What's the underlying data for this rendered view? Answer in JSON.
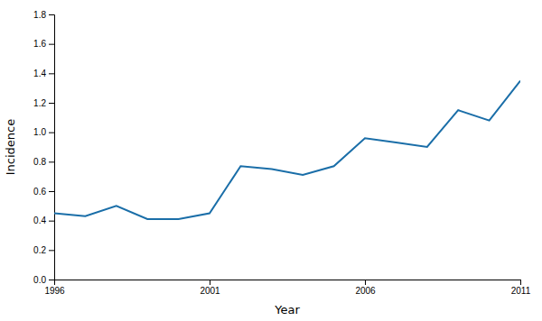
{
  "chart_data": {
    "type": "line",
    "x": [
      1996,
      1997,
      1998,
      1999,
      2000,
      2001,
      2002,
      2003,
      2004,
      2005,
      2006,
      2007,
      2008,
      2009,
      2010,
      2011
    ],
    "values": [
      0.45,
      0.43,
      0.5,
      0.41,
      0.41,
      0.45,
      0.77,
      0.75,
      0.71,
      0.77,
      0.96,
      0.93,
      0.9,
      1.15,
      1.08,
      1.35
    ],
    "color": "#1a6ea8",
    "xlabel": "Year",
    "ylabel": "Incidence",
    "xlim": [
      1996,
      2011
    ],
    "ylim": [
      0.0,
      1.8
    ],
    "xticks": [
      1996,
      2001,
      2006,
      2011
    ],
    "yticks": [
      {
        "value": 0.0,
        "label": "0.0"
      },
      0.2,
      0.4,
      0.6,
      0.8,
      {
        "value": 1.0,
        "label": "1.0"
      },
      1.2,
      1.4,
      1.6,
      1.8
    ],
    "grid": false
  }
}
